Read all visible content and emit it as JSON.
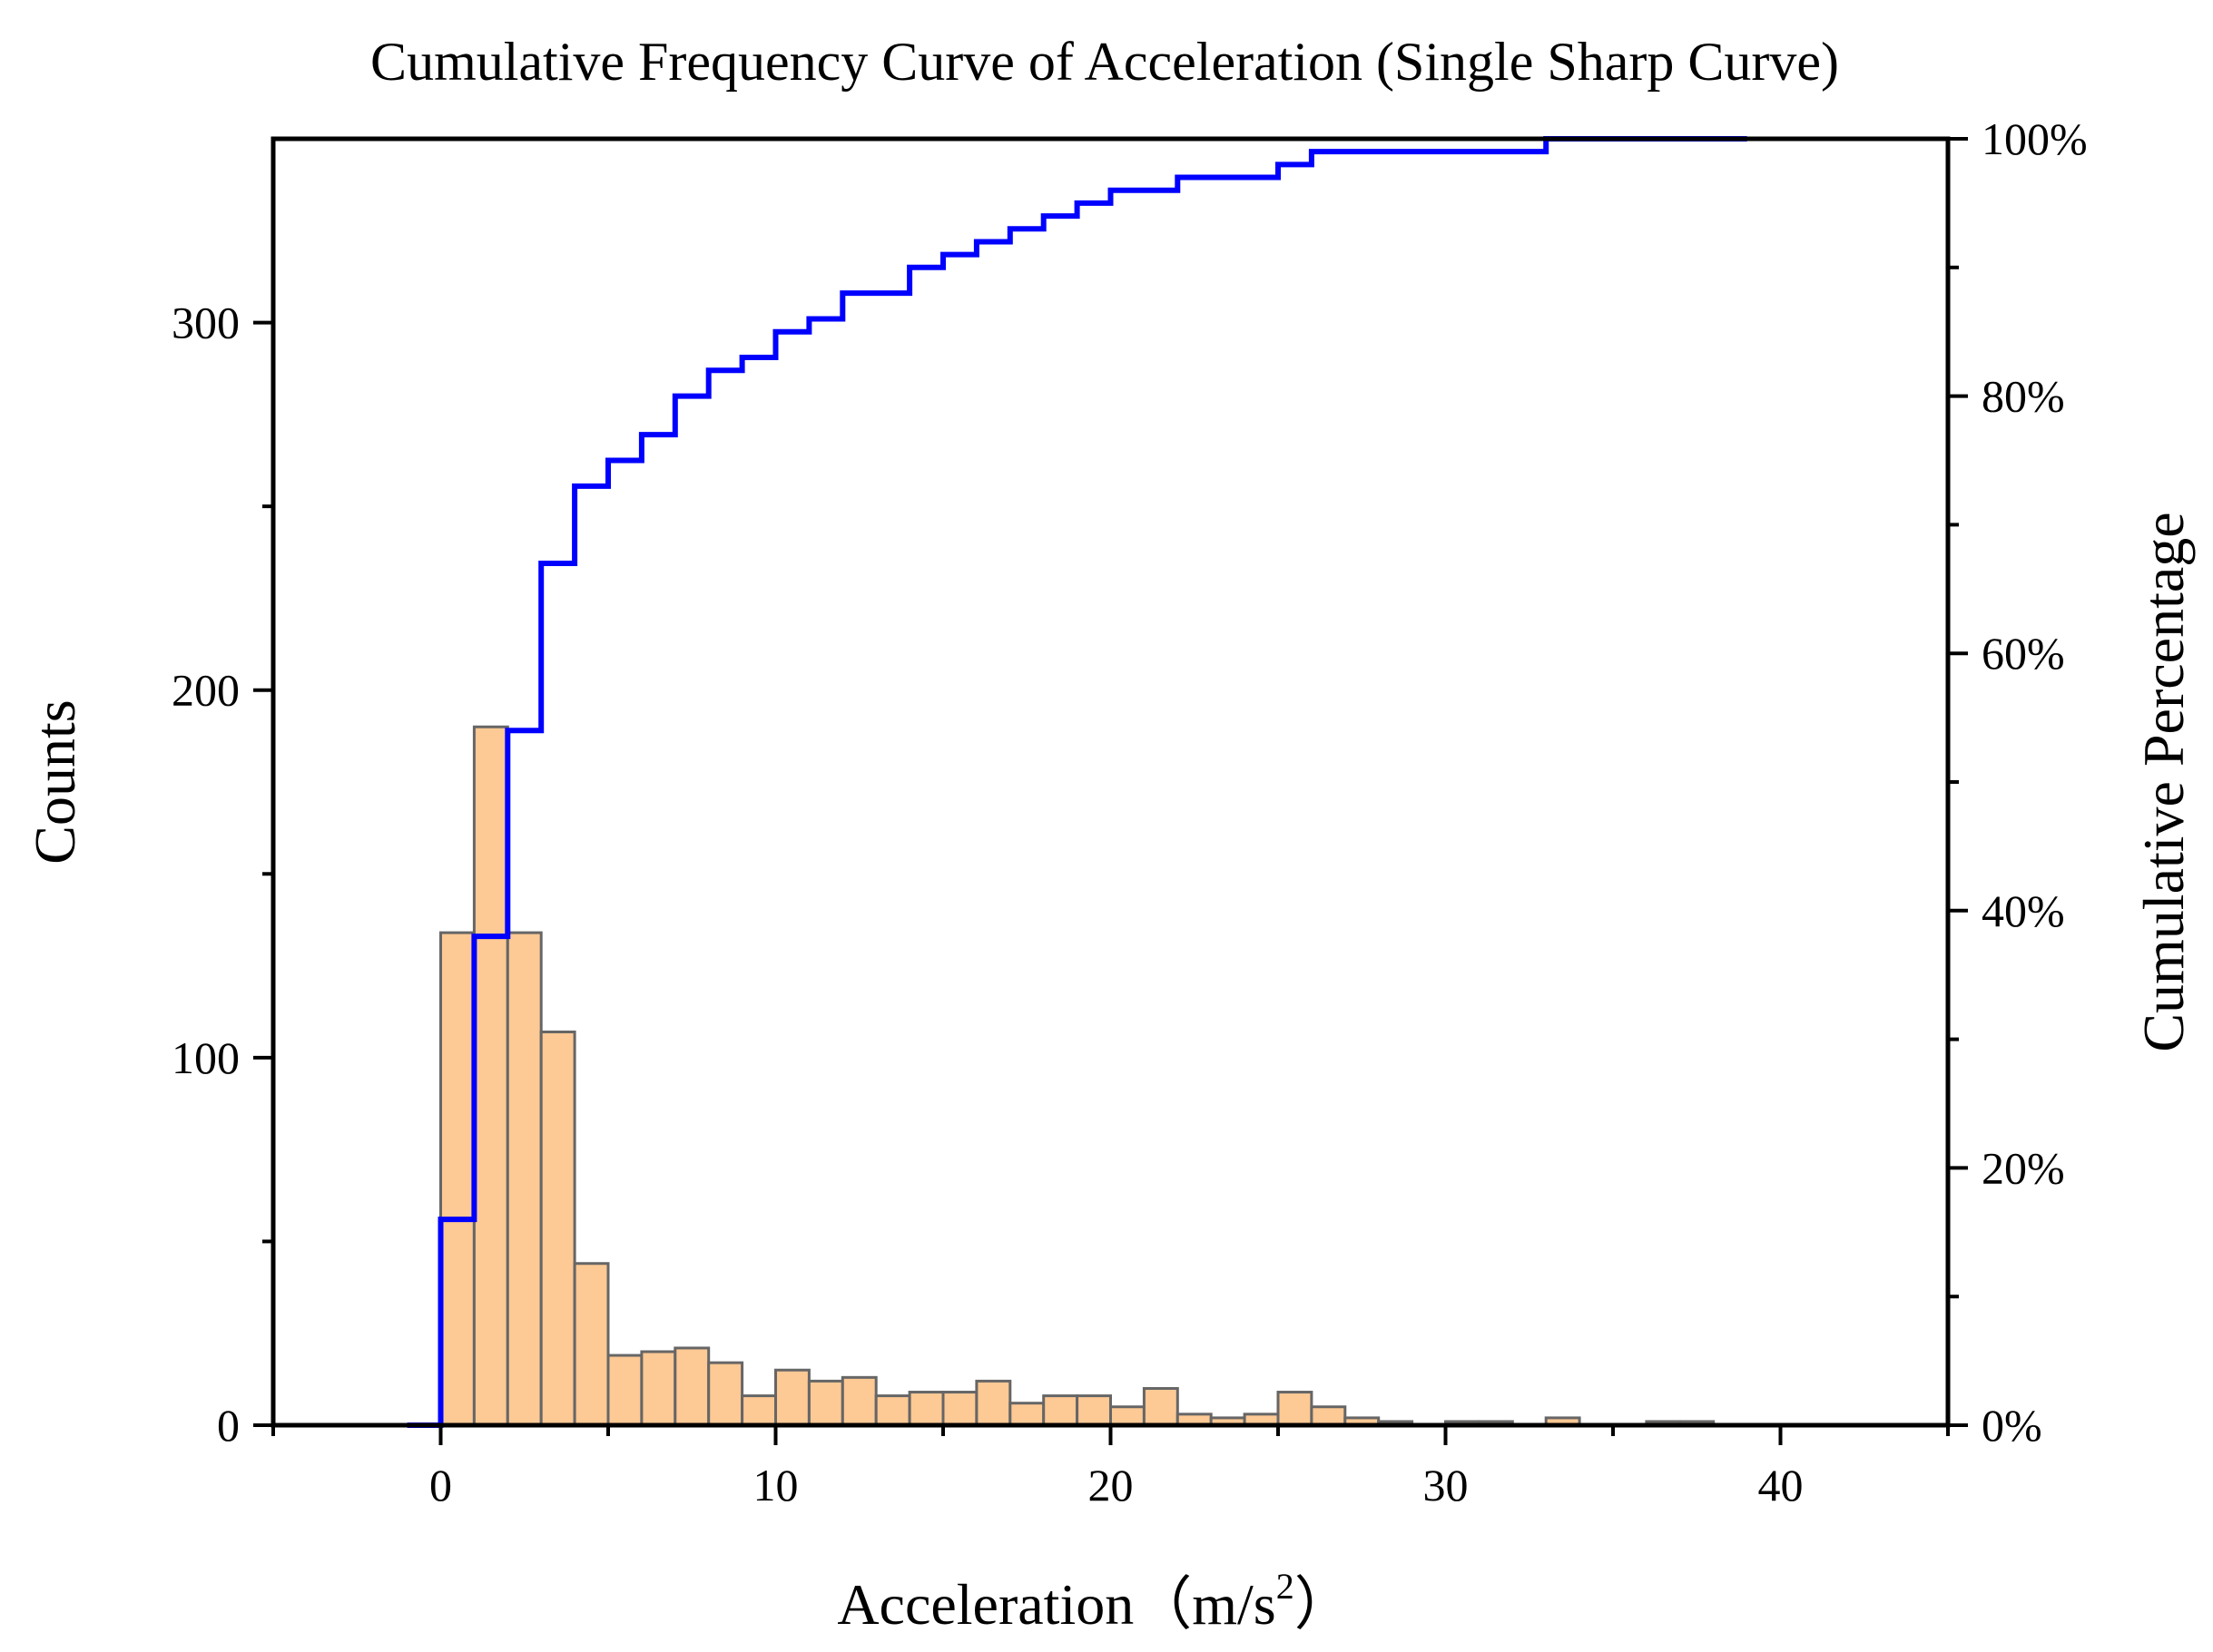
{
  "chart_data": {
    "type": "bar",
    "title": "Cumulative Frequency Curve of Acceleration (Single Sharp Curve)",
    "xlabel": "Acceleration（m/s²）",
    "xlabel_main": "Acceleration（m/s",
    "xlabel_sup": "2",
    "xlabel_close": "）",
    "ylabel": "Counts",
    "y2label": "Cumulative Percentage",
    "xlim": [
      -5,
      45
    ],
    "ylim": [
      0,
      350
    ],
    "y2lim": [
      0,
      100
    ],
    "xticks": [
      0,
      10,
      20,
      30,
      40
    ],
    "yticks": [
      0,
      100,
      200,
      300
    ],
    "y2ticks": [
      0,
      20,
      40,
      60,
      80,
      100
    ],
    "y2ticklabels": [
      "0%",
      "20%",
      "40%",
      "60%",
      "80%",
      "100%"
    ],
    "bin_width": 1,
    "bin_starts": [
      -1,
      0,
      1,
      2,
      3,
      4,
      5,
      6,
      7,
      8,
      9,
      10,
      11,
      12,
      13,
      14,
      15,
      16,
      17,
      18,
      19,
      20,
      21,
      22,
      23,
      24,
      25,
      26,
      27,
      28,
      29,
      30,
      31,
      32,
      33,
      34,
      35,
      36,
      37,
      38
    ],
    "counts": [
      0,
      134,
      190,
      134,
      107,
      44,
      19,
      20,
      21,
      17,
      8,
      15,
      12,
      13,
      8,
      9,
      9,
      12,
      6,
      8,
      8,
      5,
      10,
      3,
      2,
      3,
      9,
      5,
      2,
      1,
      0,
      1,
      1,
      0,
      2,
      0,
      0,
      1,
      1,
      0
    ],
    "bar_color": "#fdc994",
    "bar_edge_color": "#666666",
    "cumulative_color": "#0000ff",
    "cumulative_percent": [
      0,
      16,
      38,
      54,
      67,
      73,
      75,
      77,
      80,
      82,
      83,
      85,
      86,
      88,
      88,
      90,
      91,
      92,
      93,
      94,
      95,
      96,
      96,
      97,
      97,
      97,
      98,
      99,
      99,
      99,
      99,
      99,
      99,
      99,
      100,
      100,
      100,
      100,
      100,
      100
    ]
  }
}
